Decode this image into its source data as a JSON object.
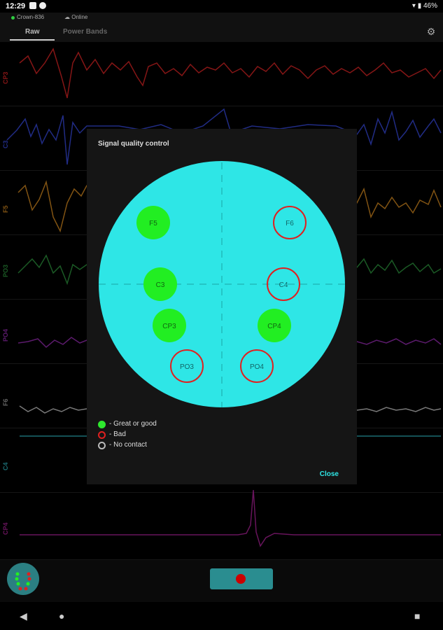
{
  "status_bar": {
    "time": "12:29",
    "battery": "46%"
  },
  "header": {
    "device_name": "Crown-836",
    "connection_status": "Online",
    "tabs": [
      {
        "label": "Raw",
        "active": true
      },
      {
        "label": "Power Bands",
        "active": false
      }
    ],
    "settings_icon": "gear-icon"
  },
  "channels": [
    {
      "label": "CP3",
      "color": "#cc2222"
    },
    {
      "label": "C3",
      "color": "#3344cc"
    },
    {
      "label": "F5",
      "color": "#c8821e"
    },
    {
      "label": "PO3",
      "color": "#2a8a3a"
    },
    {
      "label": "PO4",
      "color": "#8e2aa8"
    },
    {
      "label": "F6",
      "color": "#bbbbbb"
    },
    {
      "label": "C4",
      "color": "#2aa6b0"
    },
    {
      "label": "CP4",
      "color": "#a0208e"
    }
  ],
  "dialog": {
    "title": "Signal quality control",
    "head_color": "#2ee6e6",
    "electrodes": [
      {
        "label": "F5",
        "quality": "good"
      },
      {
        "label": "F6",
        "quality": "bad"
      },
      {
        "label": "C3",
        "quality": "good"
      },
      {
        "label": "C4",
        "quality": "bad"
      },
      {
        "label": "CP3",
        "quality": "good"
      },
      {
        "label": "CP4",
        "quality": "good"
      },
      {
        "label": "PO3",
        "quality": "bad"
      },
      {
        "label": "PO4",
        "quality": "bad"
      }
    ],
    "legend": [
      {
        "label": "- Great or good",
        "type": "good",
        "color": "#2ee82e"
      },
      {
        "label": "- Bad",
        "type": "bad",
        "color": "#e02020"
      },
      {
        "label": "- No contact",
        "type": "none",
        "color": "#bbbbbb"
      }
    ],
    "close_label": "Close"
  },
  "bottom": {
    "record_icon": "record-icon",
    "head_icon": "head-map-icon"
  },
  "nav": {
    "back_icon": "back-icon",
    "home_icon": "home-icon",
    "recents_icon": "recents-icon"
  }
}
